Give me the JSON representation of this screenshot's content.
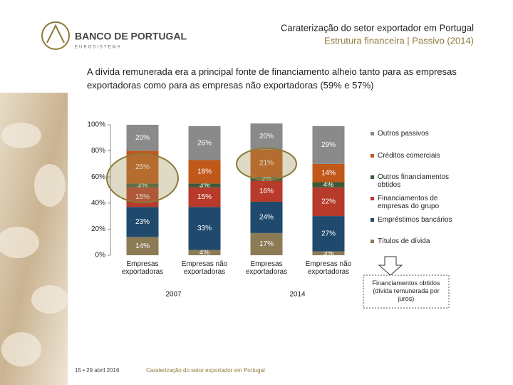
{
  "header": {
    "logo": "BANCO DE PORTUGAL",
    "logo_sub": "EUROSISTEMA",
    "title": "Caraterização do setor exportador em Portugal",
    "subtitle": "Estrutura financeira | Passivo (2014)"
  },
  "headline": "A dívida remunerada era a principal fonte de financiamento alheio tanto para as empresas exportadoras como para as empresas não exportadoras (59% e 57%)",
  "chart_data": {
    "type": "stacked_bar",
    "categories": [
      "Empresas exportadoras",
      "Empresas não exportadoras",
      "Empresas exportadoras",
      "Empresas não exportadoras"
    ],
    "groups": [
      "2007",
      "2014"
    ],
    "series": [
      {
        "name": "Títulos de dívida",
        "color": "#8c7b55",
        "values": [
          14,
          4,
          17,
          3
        ],
        "value_labels": [
          "14%",
          "4%",
          "17%",
          "3%"
        ]
      },
      {
        "name": "Empréstimos bancários",
        "color": "#1f4a6e",
        "values": [
          23,
          33,
          24,
          27
        ],
        "value_labels": [
          "23%",
          "33%",
          "24%",
          "27%"
        ]
      },
      {
        "name": "Financiamentos de empresas do grupo",
        "color": "#b73a2a",
        "values": [
          15,
          15,
          16,
          22
        ],
        "value_labels": [
          "15%",
          "15%",
          "16%",
          "22%"
        ]
      },
      {
        "name": "Outros financiamentos obtidos",
        "color": "#3c5a3a",
        "values": [
          3,
          3,
          3,
          4
        ],
        "value_labels": [
          "3%",
          "3%",
          "3%",
          "4%"
        ]
      },
      {
        "name": "Créditos comerciais",
        "color": "#c0581a",
        "values": [
          25,
          18,
          21,
          14
        ],
        "value_labels": [
          "25%",
          "18%",
          "21%",
          "14%"
        ]
      },
      {
        "name": "Outros passivos",
        "color": "#8a8a8a",
        "values": [
          20,
          26,
          20,
          29
        ],
        "value_labels": [
          "20%",
          "26%",
          "20%",
          "29%"
        ]
      }
    ],
    "ylim": [
      0,
      100
    ],
    "yticks": [
      {
        "value": 0,
        "label": "0%"
      },
      {
        "value": 20,
        "label": "20%"
      },
      {
        "value": 40,
        "label": "40%"
      },
      {
        "value": 60,
        "label": "60%"
      },
      {
        "value": 80,
        "label": "80%"
      },
      {
        "value": 100,
        "label": "100%"
      }
    ],
    "annotation": "Financiamentos obtidos (dívida remunerada por juros)"
  },
  "footer": {
    "page": "15 • 29 abril 2016",
    "text": "Caraterização do setor exportador em Portugal"
  }
}
